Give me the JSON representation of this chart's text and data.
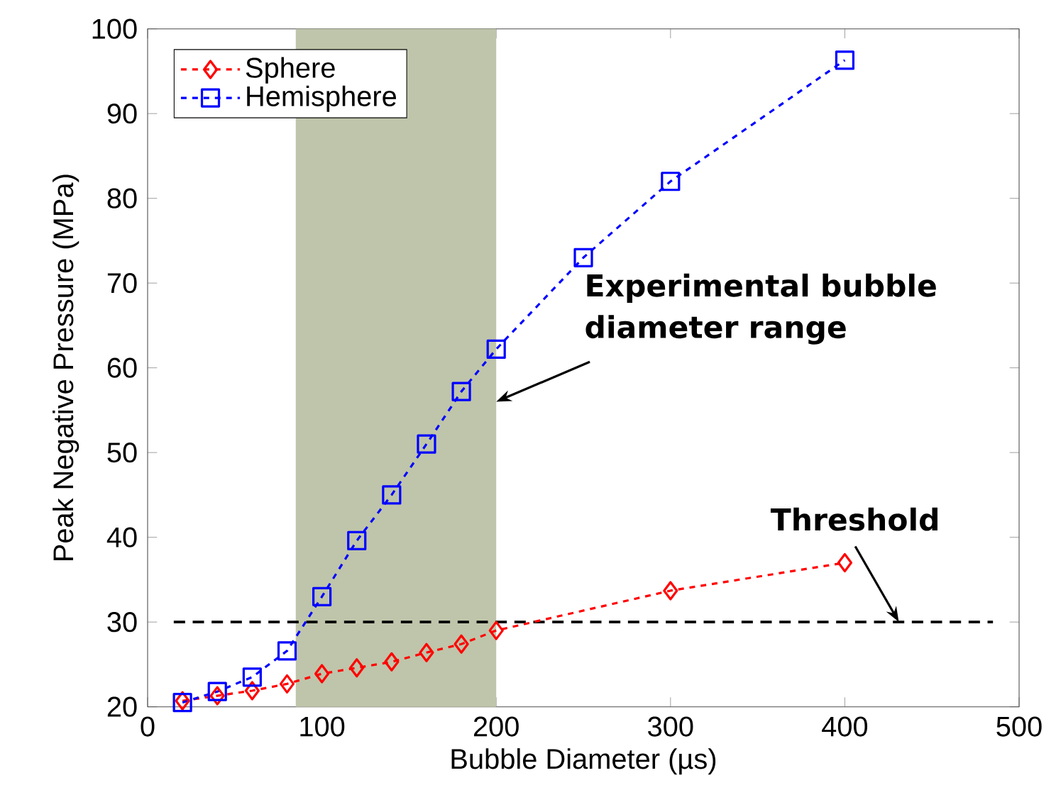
{
  "chart_data": {
    "type": "line",
    "xlabel": "Bubble Diameter (µs)",
    "ylabel": "Peak Negative Pressure (MPa)",
    "xlim": [
      0,
      500
    ],
    "xticks": [
      0,
      100,
      200,
      300,
      400,
      500
    ],
    "ylim": [
      20,
      100
    ],
    "yticks": [
      20,
      30,
      40,
      50,
      60,
      70,
      80,
      90,
      100
    ],
    "series": [
      {
        "name": "Sphere",
        "color": "#ff0000",
        "marker": "diamond",
        "x": [
          20,
          40,
          60,
          80,
          100,
          120,
          140,
          160,
          180,
          200,
          300,
          400
        ],
        "values": [
          20.7,
          21.3,
          21.9,
          22.7,
          23.9,
          24.6,
          25.3,
          26.4,
          27.4,
          29,
          33.7,
          37
        ]
      },
      {
        "name": "Hemisphere",
        "color": "#0000ff",
        "marker": "square",
        "x": [
          20,
          40,
          60,
          80,
          100,
          120,
          140,
          160,
          180,
          200,
          250,
          300,
          400
        ],
        "values": [
          20.5,
          21.8,
          23.5,
          26.6,
          33,
          39.6,
          45,
          51,
          57.2,
          62.2,
          73,
          82,
          96.3
        ]
      }
    ],
    "line_style": "dashed",
    "legend": "top left",
    "grid": false,
    "ref_lines": [
      {
        "axis": "y",
        "value": 30,
        "label": "Threshold",
        "color": "#000000",
        "line_style": "dashed"
      }
    ],
    "bands": [
      {
        "axis": "x",
        "from": 85,
        "to": 200,
        "label": "Experimental bubble diameter range",
        "color": "#bfc5aa"
      }
    ]
  }
}
